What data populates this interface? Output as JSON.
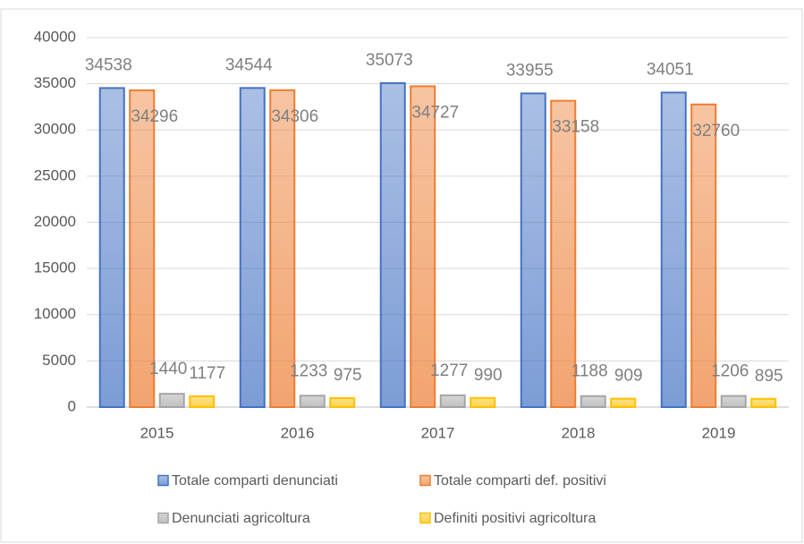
{
  "chart_data": {
    "type": "bar",
    "categories": [
      "2015",
      "2016",
      "2017",
      "2018",
      "2019"
    ],
    "series": [
      {
        "name": "Totale comparti denunciati",
        "color": "#4472c4",
        "values": [
          34538,
          34544,
          35073,
          33955,
          34051
        ]
      },
      {
        "name": "Totale comparti def. positivi",
        "color": "#ed7d31",
        "values": [
          34296,
          34306,
          34727,
          33158,
          32760
        ]
      },
      {
        "name": "Denunciati agricoltura",
        "color": "#a5a5a5",
        "values": [
          1440,
          1233,
          1277,
          1188,
          1206
        ]
      },
      {
        "name": "Definiti positivi agricoltura",
        "color": "#ffc000",
        "values": [
          1177,
          975,
          990,
          909,
          895
        ]
      }
    ],
    "ylim": [
      0,
      40000
    ],
    "yticks": [
      0,
      5000,
      10000,
      15000,
      20000,
      25000,
      30000,
      35000,
      40000
    ],
    "grid": true,
    "legend": "bottom"
  }
}
